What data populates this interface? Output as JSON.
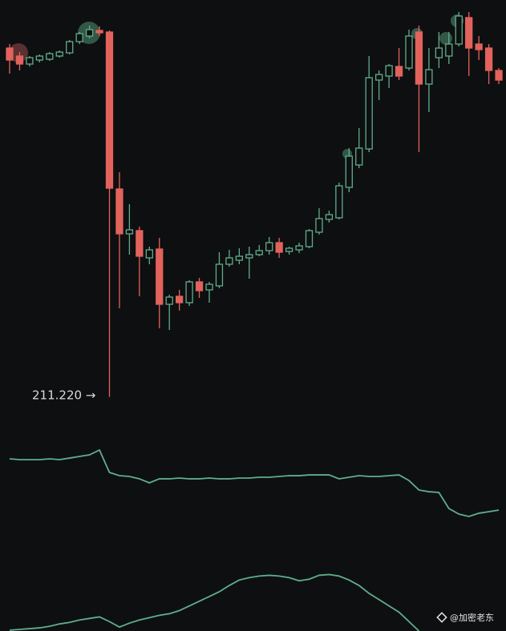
{
  "chart_data": [
    {
      "type": "candlestick",
      "up_color": "#5fae8a",
      "down_color": "#e2625c",
      "ylim": [
        209,
        236
      ],
      "annotations": [
        "211.220 →"
      ],
      "open": [
        233,
        232.5,
        232,
        232.25,
        232.3,
        232.5,
        232.7,
        233.4,
        233.75,
        234.1,
        234,
        224.2,
        221.4,
        221.6,
        219.9,
        220.45,
        217,
        217.5,
        217.1,
        218.4,
        217.9,
        218.15,
        219.5,
        219.75,
        219.9,
        220.1,
        220.35,
        220.85,
        220.3,
        220.4,
        220.6,
        221.5,
        222.3,
        222.4,
        224.3,
        225.7,
        226.7,
        231,
        231.25,
        231.85,
        231.75,
        234,
        230.75,
        232.4,
        232.5,
        233.25,
        234.9,
        233.25,
        233,
        231.6
      ],
      "high": [
        233.25,
        232.75,
        232.5,
        232.6,
        232.75,
        232.85,
        233.5,
        234,
        234.4,
        234.35,
        234.1,
        225.25,
        223.25,
        221.85,
        220.6,
        221.15,
        217.6,
        217.9,
        218.5,
        218.65,
        218.4,
        220.25,
        220.4,
        220.5,
        220.6,
        220.7,
        221.2,
        221.15,
        220.6,
        220.85,
        221.7,
        223,
        222.85,
        224.6,
        226.75,
        228,
        232.5,
        231.6,
        232,
        233,
        234.15,
        234.4,
        233,
        234,
        234,
        235.25,
        235.25,
        233.75,
        233.25,
        231.75
      ],
      "low": [
        231.4,
        231.6,
        231.85,
        232.1,
        232.2,
        232.4,
        232.6,
        233.25,
        233.6,
        233.75,
        211.22,
        216.75,
        220.1,
        217.5,
        219.5,
        215.5,
        215.4,
        216.6,
        216.9,
        217.4,
        217.1,
        218,
        219.35,
        219.5,
        218.6,
        220,
        220.1,
        219.9,
        220.1,
        220.2,
        220.5,
        221.35,
        222.1,
        222.3,
        224,
        225.5,
        226.5,
        229.75,
        230.5,
        231,
        231.6,
        226.5,
        229,
        231.75,
        232,
        233.1,
        231.25,
        232.25,
        230.75,
        230.75
      ],
      "close": [
        232.25,
        232,
        232.4,
        232.5,
        232.65,
        232.75,
        233.4,
        233.9,
        234.15,
        233.95,
        224.25,
        221.4,
        221.65,
        220,
        220.4,
        217,
        217.45,
        217.1,
        218.4,
        217.85,
        218.25,
        219.5,
        219.9,
        220,
        220.1,
        220.35,
        220.85,
        220.25,
        220.5,
        220.65,
        221.6,
        222.35,
        222.6,
        224.4,
        226.25,
        226.75,
        231.15,
        231.35,
        231.9,
        231.25,
        233.75,
        230.75,
        231.65,
        233,
        233.25,
        235,
        233,
        232.9,
        231.6,
        231
      ]
    },
    {
      "type": "line",
      "color": "#5fae8a",
      "ylim": [
        0,
        100
      ],
      "values": [
        76.4,
        75.7,
        75.7,
        75.7,
        76.4,
        75.7,
        77.1,
        78.6,
        80,
        84.3,
        64.3,
        61.4,
        60.7,
        58.6,
        55,
        58.6,
        58.6,
        59.3,
        58.6,
        58.6,
        59.3,
        58.6,
        58.6,
        59.3,
        59.3,
        60,
        60,
        60.7,
        61.4,
        61.4,
        62.1,
        62.1,
        62.1,
        58.6,
        60,
        61.4,
        60.7,
        60.7,
        61.4,
        62.1,
        57.1,
        48.6,
        47.1,
        46.4,
        32.1,
        27.1,
        25,
        27.9,
        29.3,
        30.7
      ]
    },
    {
      "type": "line",
      "color": "#5fae8a",
      "ylim": [
        0,
        100
      ],
      "values": [
        1,
        2,
        3,
        4,
        6,
        9,
        11,
        14,
        16,
        18,
        12,
        5,
        10,
        14,
        17,
        20,
        22,
        26,
        32,
        38,
        44,
        50,
        58,
        65,
        68,
        70,
        71,
        70,
        68,
        64,
        66,
        71,
        72,
        70,
        65,
        58,
        48,
        40,
        32,
        24,
        12,
        0,
        null,
        null,
        null,
        null,
        null,
        null,
        null,
        null
      ]
    }
  ],
  "watermark": "@加密老东"
}
